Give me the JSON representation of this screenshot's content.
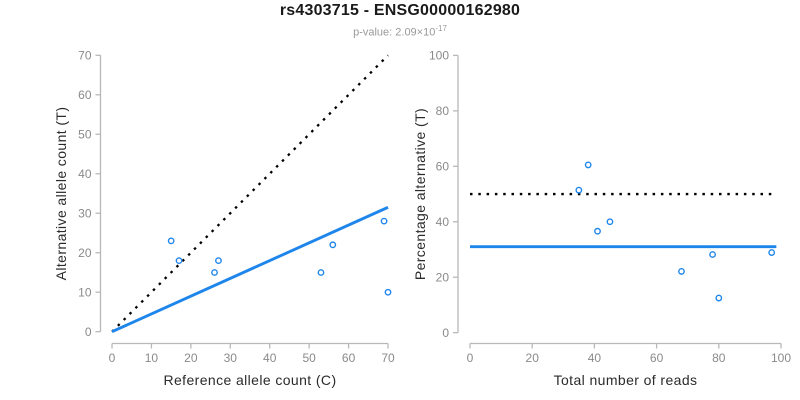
{
  "header": {
    "title": "rs4303715 - ENSG00000162980",
    "subtitle_prefix": "p-value: 2.09×10",
    "subtitle_exponent": "-17"
  },
  "colors": {
    "accent_blue": "#1E86EB",
    "dotted_black": "#000000",
    "axis_gray": "#b8b8b8",
    "tick_label_gray": "#8a8a8a"
  },
  "chart_data": [
    {
      "type": "scatter",
      "panel": "allele-counts",
      "xlabel": "Reference allele count (C)",
      "ylabel": "Alternative allele count (T)",
      "xlim": [
        0,
        70
      ],
      "ylim": [
        0,
        70
      ],
      "xticks": [
        0,
        10,
        20,
        30,
        40,
        50,
        60,
        70
      ],
      "yticks": [
        0,
        10,
        20,
        30,
        40,
        50,
        60,
        70
      ],
      "grid": false,
      "legend": false,
      "point_color": "#1E86EB",
      "points": [
        [
          15,
          23
        ],
        [
          17,
          18
        ],
        [
          26,
          15
        ],
        [
          27,
          18
        ],
        [
          53,
          15
        ],
        [
          56,
          22
        ],
        [
          69,
          28
        ],
        [
          70,
          10
        ]
      ],
      "lines": [
        {
          "name": "identity-line",
          "style": "dotted",
          "color": "#000000",
          "x1": 0,
          "y1": 0,
          "x2": 70,
          "y2": 70
        },
        {
          "name": "fitted-ratio-line",
          "style": "solid",
          "color": "#1E86EB",
          "x1": 0,
          "y1": 0,
          "x2": 70,
          "y2": 31.5
        }
      ]
    },
    {
      "type": "scatter",
      "panel": "percentage-alternative",
      "xlabel": "Total number of reads",
      "ylabel": "Percentage alternative (T)",
      "xlim": [
        0,
        100
      ],
      "ylim": [
        0,
        100
      ],
      "xticks": [
        0,
        20,
        40,
        60,
        80,
        100
      ],
      "yticks": [
        0,
        20,
        40,
        60,
        80,
        100
      ],
      "grid": false,
      "legend": false,
      "point_color": "#1E86EB",
      "points": [
        [
          38,
          60.5
        ],
        [
          35,
          51.4
        ],
        [
          41,
          36.6
        ],
        [
          45,
          40
        ],
        [
          68,
          22.1
        ],
        [
          78,
          28.2
        ],
        [
          97,
          28.9
        ],
        [
          80,
          12.5
        ]
      ],
      "lines": [
        {
          "name": "fifty-percent-line",
          "style": "dotted",
          "color": "#000000",
          "x1": 0,
          "y1": 50,
          "x2": 98.5,
          "y2": 50
        },
        {
          "name": "mean-ratio-line",
          "style": "solid",
          "color": "#1E86EB",
          "x1": 0,
          "y1": 31,
          "x2": 98.5,
          "y2": 31
        }
      ]
    }
  ]
}
